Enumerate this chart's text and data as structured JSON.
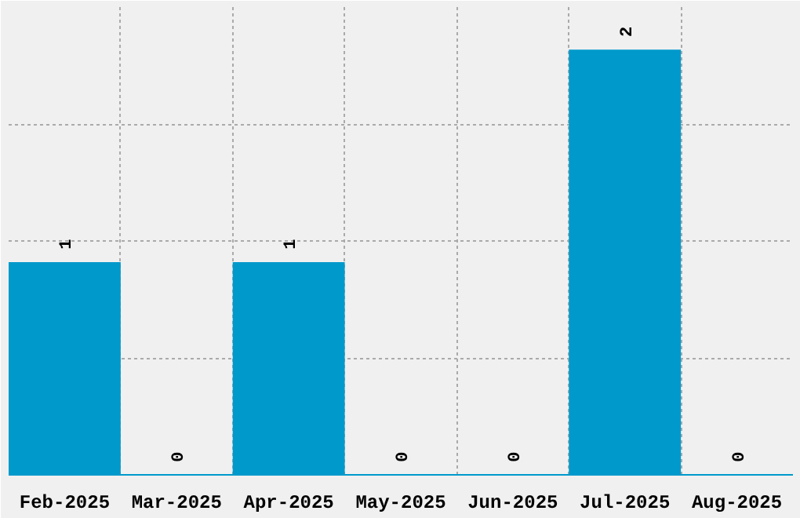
{
  "chart_data": {
    "type": "bar",
    "categories": [
      "Feb-2025",
      "Mar-2025",
      "Apr-2025",
      "May-2025",
      "Jun-2025",
      "Jul-2025",
      "Aug-2025"
    ],
    "values": [
      1,
      0,
      1,
      0,
      0,
      2,
      0
    ],
    "color": "#0099cc",
    "ylim": [
      0,
      2.2
    ],
    "yticks": [
      {
        "value": 0.55,
        "label": null
      },
      {
        "value": 1.1,
        "label": null
      },
      {
        "value": 1.65,
        "label": null
      },
      {
        "value": 2.2,
        "label": null
      }
    ],
    "tick_labels": "x",
    "grid": true,
    "data_labels": true
  }
}
